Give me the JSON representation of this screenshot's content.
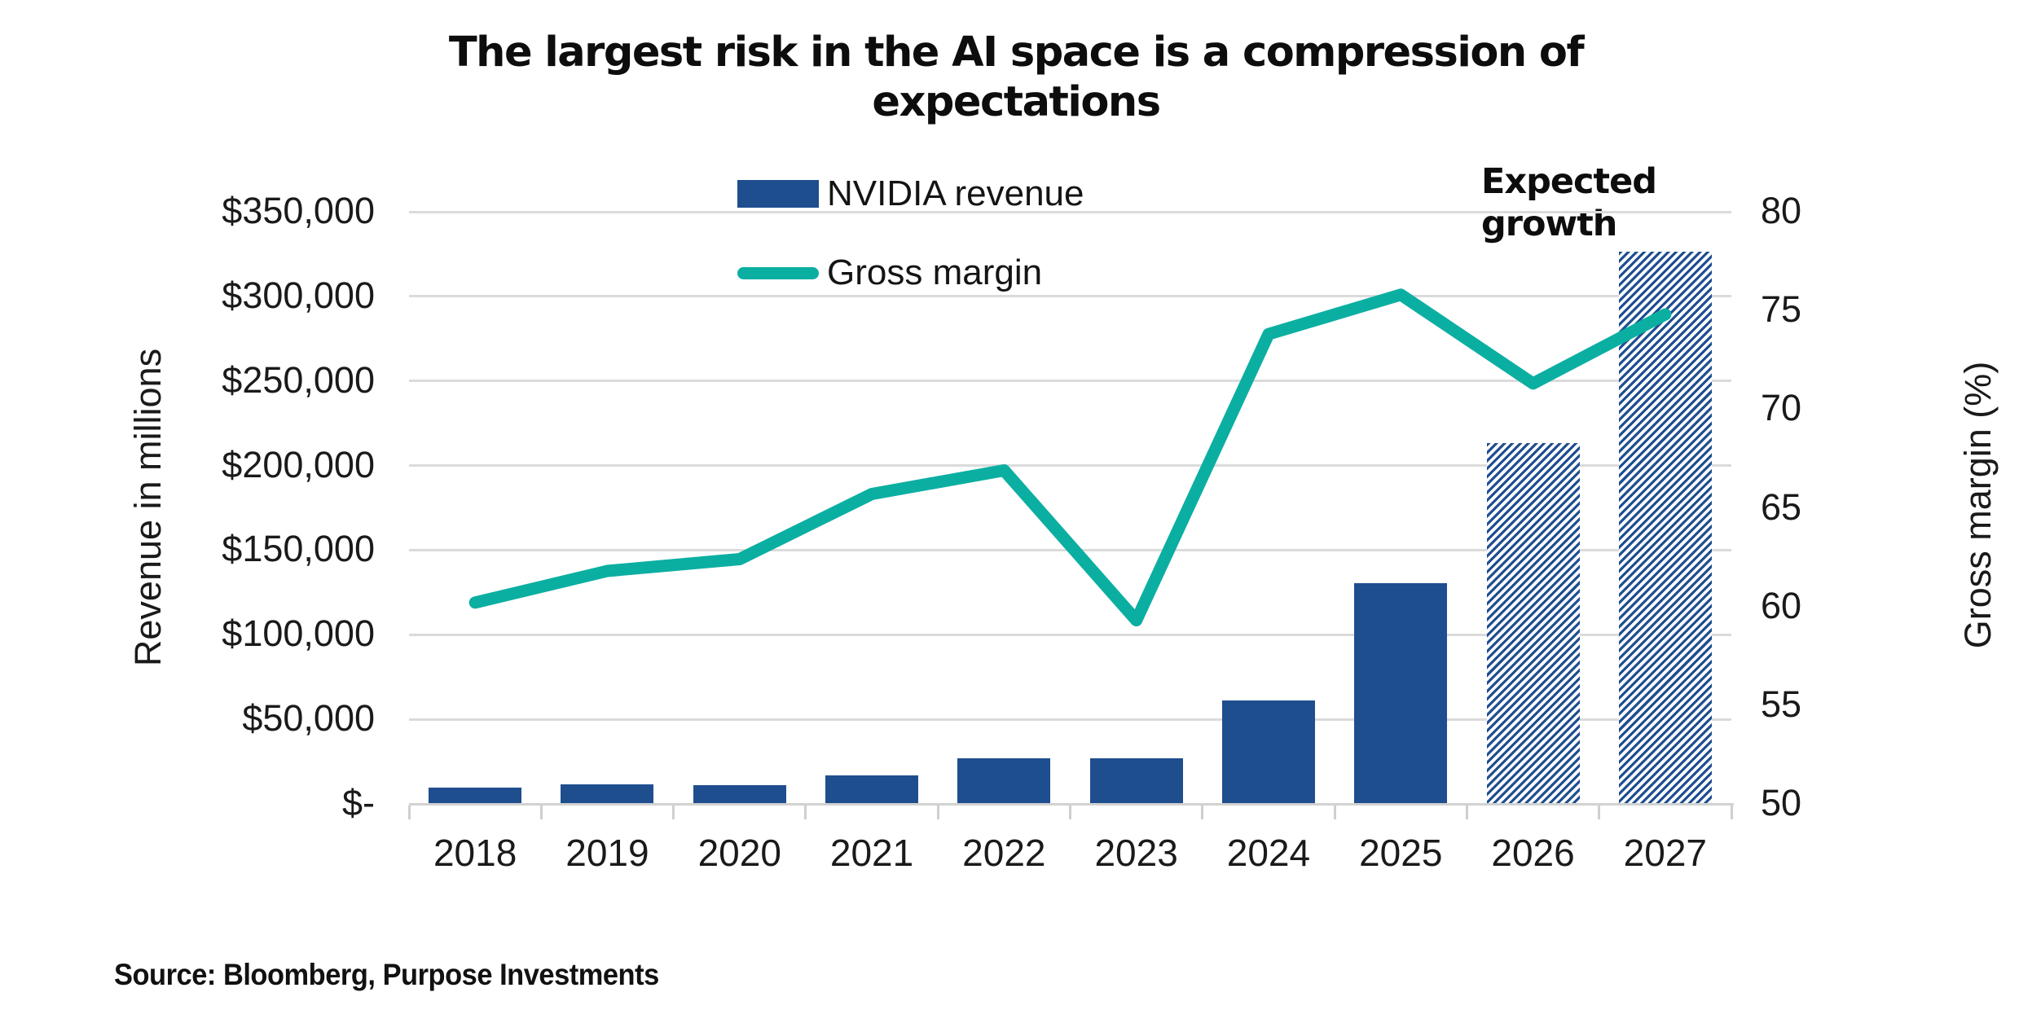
{
  "title_lines": [
    "The largest risk in the AI space is a compression of",
    "expectations"
  ],
  "legend": {
    "items": [
      {
        "label": "NVIDIA revenue",
        "swatch": "bar-swatch"
      },
      {
        "label": "Gross margin",
        "swatch": "line-swatch"
      }
    ]
  },
  "annotation": {
    "expected_growth": "Expected growth"
  },
  "axes": {
    "left": {
      "title": "Revenue in millions",
      "ticks": [
        "$350,000",
        "$300,000",
        "$250,000",
        "$200,000",
        "$150,000",
        "$100,000",
        "$50,000",
        "$-"
      ]
    },
    "right": {
      "title": "Gross margin (%)",
      "ticks": [
        "80",
        "75",
        "70",
        "65",
        "60",
        "55",
        "50"
      ]
    },
    "x": {
      "categories": [
        "2018",
        "2019",
        "2020",
        "2021",
        "2022",
        "2023",
        "2024",
        "2025",
        "2026",
        "2027"
      ]
    }
  },
  "source": "Source: Bloomberg, Purpose Investments",
  "colors": {
    "bar_blue": "#1f4e8f",
    "line_teal": "#0bafa2",
    "gridline": "#dbdbdb",
    "text": "#1a1a1a"
  },
  "chart_data": {
    "type": "bar+line",
    "title": "The largest risk in the AI space is a compression of expectations",
    "categories": [
      "2018",
      "2019",
      "2020",
      "2021",
      "2022",
      "2023",
      "2024",
      "2025",
      "2026",
      "2027"
    ],
    "series": [
      {
        "name": "NVIDIA revenue",
        "type": "bar",
        "axis": "left",
        "values": [
          9714,
          11716,
          10918,
          16675,
          26914,
          26974,
          60922,
          130497,
          213500,
          326500
        ],
        "expected_flags": [
          false,
          false,
          false,
          false,
          false,
          false,
          false,
          false,
          true,
          true
        ]
      },
      {
        "name": "Gross margin",
        "type": "line",
        "axis": "right",
        "values": [
          60.2,
          61.8,
          62.4,
          65.7,
          66.9,
          59.3,
          73.8,
          75.8,
          71.3,
          74.8
        ]
      }
    ],
    "ylabel_left": "Revenue in millions",
    "ylabel_right": "Gross margin (%)",
    "ylim_left": [
      0,
      350000
    ],
    "ylim_right": [
      50,
      80
    ],
    "ytick_step_left": 50000,
    "ytick_step_right": 5,
    "grid": "horizontal gridlines every 50,000 (left axis)",
    "legend_position": "top-center",
    "annotations": [
      {
        "text": "Expected growth",
        "applies_to": [
          "2026",
          "2027"
        ],
        "style": "hatched bars"
      }
    ]
  }
}
